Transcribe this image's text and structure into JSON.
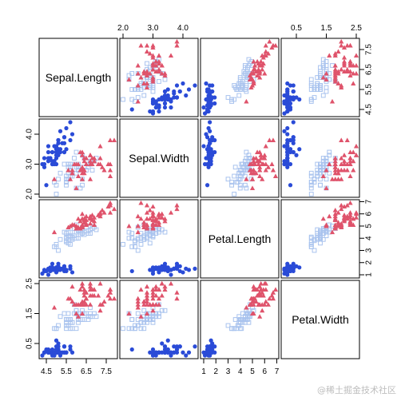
{
  "watermark": "@稀土掘金技术社区",
  "chart_data": {
    "type": "scatter-matrix",
    "variables": [
      "Sepal.Length",
      "Sepal.Width",
      "Petal.Length",
      "Petal.Width"
    ],
    "ranges": [
      [
        4.3,
        7.9
      ],
      [
        2.0,
        4.4
      ],
      [
        1.0,
        6.9
      ],
      [
        0.1,
        2.5
      ]
    ],
    "ticks": [
      [
        "4.5",
        "5.5",
        "6.5",
        "7.5"
      ],
      [
        "2.0",
        "3.0",
        "4.0"
      ],
      [
        "1",
        "2",
        "3",
        "4",
        "5",
        "6",
        "7"
      ],
      [
        "0.5",
        "1.5",
        "2.5"
      ]
    ],
    "series_styles": [
      {
        "symbol": "circle",
        "color": "#2a4bd7"
      },
      {
        "symbol": "square-open",
        "color": "#a9c3ee"
      },
      {
        "symbol": "triangle",
        "color": "#df536b"
      }
    ],
    "series": [
      {
        "points": [
          [
            5.1,
            3.5,
            1.4,
            0.2
          ],
          [
            4.9,
            3.0,
            1.4,
            0.2
          ],
          [
            4.7,
            3.2,
            1.3,
            0.2
          ],
          [
            4.6,
            3.1,
            1.5,
            0.2
          ],
          [
            5.0,
            3.6,
            1.4,
            0.2
          ],
          [
            5.4,
            3.9,
            1.7,
            0.4
          ],
          [
            4.6,
            3.4,
            1.4,
            0.3
          ],
          [
            5.0,
            3.4,
            1.5,
            0.2
          ],
          [
            4.4,
            2.9,
            1.4,
            0.2
          ],
          [
            4.9,
            3.1,
            1.5,
            0.1
          ],
          [
            5.4,
            3.7,
            1.5,
            0.2
          ],
          [
            4.8,
            3.4,
            1.6,
            0.2
          ],
          [
            4.8,
            3.0,
            1.4,
            0.1
          ],
          [
            4.3,
            3.0,
            1.1,
            0.1
          ],
          [
            5.8,
            4.0,
            1.2,
            0.2
          ],
          [
            5.7,
            4.4,
            1.5,
            0.4
          ],
          [
            5.4,
            3.9,
            1.3,
            0.4
          ],
          [
            5.1,
            3.5,
            1.4,
            0.3
          ],
          [
            5.7,
            3.8,
            1.7,
            0.3
          ],
          [
            5.1,
            3.8,
            1.5,
            0.3
          ],
          [
            5.4,
            3.4,
            1.7,
            0.2
          ],
          [
            5.1,
            3.7,
            1.5,
            0.4
          ],
          [
            4.6,
            3.6,
            1.0,
            0.2
          ],
          [
            5.1,
            3.3,
            1.7,
            0.5
          ],
          [
            4.8,
            3.4,
            1.9,
            0.2
          ],
          [
            5.0,
            3.0,
            1.6,
            0.2
          ],
          [
            5.0,
            3.4,
            1.6,
            0.4
          ],
          [
            5.2,
            3.5,
            1.5,
            0.2
          ],
          [
            5.2,
            3.4,
            1.4,
            0.2
          ],
          [
            4.7,
            3.2,
            1.6,
            0.2
          ],
          [
            4.8,
            3.1,
            1.6,
            0.2
          ],
          [
            5.4,
            3.4,
            1.5,
            0.4
          ],
          [
            5.2,
            4.1,
            1.5,
            0.1
          ],
          [
            5.5,
            4.2,
            1.4,
            0.2
          ],
          [
            4.9,
            3.1,
            1.5,
            0.2
          ],
          [
            5.0,
            3.2,
            1.2,
            0.2
          ],
          [
            5.5,
            3.5,
            1.3,
            0.2
          ],
          [
            4.9,
            3.6,
            1.4,
            0.1
          ],
          [
            4.4,
            3.0,
            1.3,
            0.2
          ],
          [
            5.1,
            3.4,
            1.5,
            0.2
          ],
          [
            5.0,
            3.5,
            1.3,
            0.3
          ],
          [
            4.5,
            2.3,
            1.3,
            0.3
          ],
          [
            4.4,
            3.2,
            1.3,
            0.2
          ],
          [
            5.0,
            3.5,
            1.6,
            0.6
          ],
          [
            5.1,
            3.8,
            1.9,
            0.4
          ],
          [
            4.8,
            3.0,
            1.4,
            0.3
          ],
          [
            5.1,
            3.8,
            1.6,
            0.2
          ],
          [
            4.6,
            3.2,
            1.4,
            0.2
          ],
          [
            5.3,
            3.7,
            1.5,
            0.2
          ],
          [
            5.0,
            3.3,
            1.4,
            0.2
          ]
        ]
      },
      {
        "points": [
          [
            7.0,
            3.2,
            4.7,
            1.4
          ],
          [
            6.4,
            3.2,
            4.5,
            1.5
          ],
          [
            6.9,
            3.1,
            4.9,
            1.5
          ],
          [
            5.5,
            2.3,
            4.0,
            1.3
          ],
          [
            6.5,
            2.8,
            4.6,
            1.5
          ],
          [
            5.7,
            2.8,
            4.5,
            1.3
          ],
          [
            6.3,
            3.3,
            4.7,
            1.6
          ],
          [
            4.9,
            2.4,
            3.3,
            1.0
          ],
          [
            6.6,
            2.9,
            4.6,
            1.3
          ],
          [
            5.2,
            2.7,
            3.9,
            1.4
          ],
          [
            5.0,
            2.0,
            3.5,
            1.0
          ],
          [
            5.9,
            3.0,
            4.2,
            1.5
          ],
          [
            6.0,
            2.2,
            4.0,
            1.0
          ],
          [
            6.1,
            2.9,
            4.7,
            1.4
          ],
          [
            5.6,
            2.9,
            3.6,
            1.3
          ],
          [
            6.7,
            3.1,
            4.4,
            1.4
          ],
          [
            5.6,
            3.0,
            4.5,
            1.5
          ],
          [
            5.8,
            2.7,
            4.1,
            1.0
          ],
          [
            6.2,
            2.2,
            4.5,
            1.5
          ],
          [
            5.6,
            2.5,
            3.9,
            1.1
          ],
          [
            5.9,
            3.2,
            4.8,
            1.8
          ],
          [
            6.1,
            2.8,
            4.0,
            1.3
          ],
          [
            6.3,
            2.5,
            4.9,
            1.5
          ],
          [
            6.1,
            2.8,
            4.7,
            1.2
          ],
          [
            6.4,
            2.9,
            4.3,
            1.3
          ],
          [
            6.6,
            3.0,
            4.4,
            1.4
          ],
          [
            6.8,
            2.8,
            4.8,
            1.4
          ],
          [
            6.7,
            3.0,
            5.0,
            1.7
          ],
          [
            6.0,
            2.9,
            4.5,
            1.5
          ],
          [
            5.7,
            2.6,
            3.5,
            1.0
          ],
          [
            5.5,
            2.4,
            3.8,
            1.1
          ],
          [
            5.5,
            2.4,
            3.7,
            1.0
          ],
          [
            5.8,
            2.7,
            3.9,
            1.2
          ],
          [
            6.0,
            2.7,
            5.1,
            1.6
          ],
          [
            5.4,
            3.0,
            4.5,
            1.5
          ],
          [
            6.0,
            3.4,
            4.5,
            1.6
          ],
          [
            6.7,
            3.1,
            4.7,
            1.5
          ],
          [
            6.3,
            2.3,
            4.4,
            1.3
          ],
          [
            5.6,
            3.0,
            4.1,
            1.3
          ],
          [
            5.5,
            2.5,
            4.0,
            1.3
          ],
          [
            5.5,
            2.6,
            4.4,
            1.2
          ],
          [
            6.1,
            3.0,
            4.6,
            1.4
          ],
          [
            5.8,
            2.6,
            4.0,
            1.2
          ],
          [
            5.0,
            2.3,
            3.3,
            1.0
          ],
          [
            5.6,
            2.7,
            4.2,
            1.3
          ],
          [
            5.7,
            3.0,
            4.2,
            1.2
          ],
          [
            5.7,
            2.9,
            4.2,
            1.3
          ],
          [
            6.2,
            2.9,
            4.3,
            1.3
          ],
          [
            5.1,
            2.5,
            3.0,
            1.1
          ],
          [
            5.7,
            2.8,
            4.1,
            1.3
          ]
        ]
      },
      {
        "points": [
          [
            6.3,
            3.3,
            6.0,
            2.5
          ],
          [
            5.8,
            2.7,
            5.1,
            1.9
          ],
          [
            7.1,
            3.0,
            5.9,
            2.1
          ],
          [
            6.3,
            2.9,
            5.6,
            1.8
          ],
          [
            6.5,
            3.0,
            5.8,
            2.2
          ],
          [
            7.6,
            3.0,
            6.6,
            2.1
          ],
          [
            4.9,
            2.5,
            4.5,
            1.7
          ],
          [
            7.3,
            2.9,
            6.3,
            1.8
          ],
          [
            6.7,
            2.5,
            5.8,
            1.8
          ],
          [
            7.2,
            3.6,
            6.1,
            2.5
          ],
          [
            6.5,
            3.2,
            5.1,
            2.0
          ],
          [
            6.4,
            2.7,
            5.3,
            1.9
          ],
          [
            6.8,
            3.0,
            5.5,
            2.1
          ],
          [
            5.7,
            2.5,
            5.0,
            2.0
          ],
          [
            5.8,
            2.8,
            5.1,
            2.4
          ],
          [
            6.4,
            3.2,
            5.3,
            2.3
          ],
          [
            6.5,
            3.0,
            5.5,
            1.8
          ],
          [
            7.7,
            3.8,
            6.7,
            2.2
          ],
          [
            7.7,
            2.6,
            6.9,
            2.3
          ],
          [
            6.0,
            2.2,
            5.0,
            1.5
          ],
          [
            6.9,
            3.2,
            5.7,
            2.3
          ],
          [
            5.6,
            2.8,
            4.9,
            2.0
          ],
          [
            7.7,
            2.8,
            6.7,
            2.0
          ],
          [
            6.3,
            2.7,
            4.9,
            1.8
          ],
          [
            6.7,
            3.3,
            5.7,
            2.1
          ],
          [
            7.2,
            3.2,
            6.0,
            1.8
          ],
          [
            6.2,
            2.8,
            4.8,
            1.8
          ],
          [
            6.1,
            3.0,
            4.9,
            1.8
          ],
          [
            6.4,
            2.8,
            5.6,
            2.1
          ],
          [
            7.2,
            3.0,
            5.8,
            1.6
          ],
          [
            7.4,
            2.8,
            6.1,
            1.9
          ],
          [
            7.9,
            3.8,
            6.4,
            2.0
          ],
          [
            6.4,
            2.8,
            5.6,
            2.2
          ],
          [
            6.3,
            2.8,
            5.1,
            1.5
          ],
          [
            6.1,
            2.6,
            5.6,
            1.4
          ],
          [
            7.7,
            3.0,
            6.1,
            2.3
          ],
          [
            6.3,
            3.4,
            5.6,
            2.4
          ],
          [
            6.4,
            3.1,
            5.5,
            1.8
          ],
          [
            6.0,
            3.0,
            4.8,
            1.8
          ],
          [
            6.9,
            3.1,
            5.4,
            2.1
          ],
          [
            6.7,
            3.1,
            5.6,
            2.4
          ],
          [
            6.9,
            3.1,
            5.1,
            2.3
          ],
          [
            5.8,
            2.7,
            5.1,
            1.9
          ],
          [
            6.8,
            3.2,
            5.9,
            2.3
          ],
          [
            6.7,
            3.3,
            5.7,
            2.5
          ],
          [
            6.7,
            3.0,
            5.2,
            2.3
          ],
          [
            6.3,
            2.5,
            5.0,
            1.9
          ],
          [
            6.5,
            3.0,
            5.2,
            2.0
          ],
          [
            6.2,
            3.4,
            5.4,
            2.3
          ],
          [
            5.9,
            3.0,
            5.1,
            1.8
          ]
        ]
      }
    ]
  }
}
